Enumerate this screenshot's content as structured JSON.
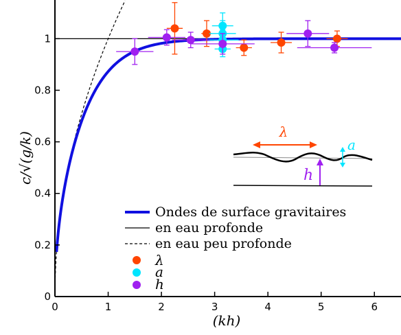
{
  "chart_data": {
    "type": "scatter",
    "xlabel": "(kh)",
    "ylabel": "c/√(g/k)",
    "xlim": [
      0,
      6.5
    ],
    "ylim": [
      0,
      1.15
    ],
    "xticks": [
      0,
      1,
      2,
      3,
      4,
      5,
      6
    ],
    "yticks": [
      0,
      0.2,
      0.4,
      0.6,
      0.8,
      1
    ],
    "ytick_labels": [
      "0",
      "0.2",
      "0.4",
      "0.6",
      "0.8",
      "1"
    ],
    "grid": false,
    "legend_position": "bottom-right",
    "lines": [
      {
        "name": "Ondes de surface gravitaires",
        "formula": "sqrt(tanh(kh))",
        "color": "#1010e0"
      },
      {
        "name": "en eau profonde",
        "formula": "1",
        "color": "#000000"
      },
      {
        "name": "en eau peu profonde",
        "formula": "sqrt(kh)",
        "color": "#000000"
      }
    ],
    "series": [
      {
        "name": "λ",
        "color": "#ff4500",
        "points": [
          {
            "x": 2.25,
            "y": 1.04,
            "xerr": 0.15,
            "yerr": 0.1
          },
          {
            "x": 2.85,
            "y": 1.02,
            "xerr": 0.1,
            "yerr": 0.05
          },
          {
            "x": 3.55,
            "y": 0.965,
            "xerr": 0.15,
            "yerr": 0.03
          },
          {
            "x": 4.25,
            "y": 0.985,
            "xerr": 0.2,
            "yerr": 0.04
          },
          {
            "x": 5.3,
            "y": 1.0,
            "xerr": 0.2,
            "yerr": 0.03
          }
        ]
      },
      {
        "name": "a",
        "color": "#00e5ff",
        "points": [
          {
            "x": 3.15,
            "y": 1.05,
            "xerr": 0.2,
            "yerr": 0.05
          },
          {
            "x": 3.15,
            "y": 1.02,
            "xerr": 0.25,
            "yerr": 0.05
          },
          {
            "x": 3.15,
            "y": 0.995,
            "xerr": 0.3,
            "yerr": 0.04
          },
          {
            "x": 3.15,
            "y": 0.96,
            "xerr": 0.15,
            "yerr": 0.03
          }
        ]
      },
      {
        "name": "h",
        "color": "#a020f0",
        "points": [
          {
            "x": 1.5,
            "y": 0.95,
            "xerr": 0.35,
            "yerr": 0.05
          },
          {
            "x": 2.1,
            "y": 1.005,
            "xerr": 0.35,
            "yerr": 0.03
          },
          {
            "x": 2.55,
            "y": 0.995,
            "xerr": 0.35,
            "yerr": 0.03
          },
          {
            "x": 3.15,
            "y": 0.98,
            "xerr": 0.6,
            "yerr": 0.04
          },
          {
            "x": 4.75,
            "y": 1.02,
            "xerr": 0.4,
            "yerr": 0.05
          },
          {
            "x": 5.25,
            "y": 0.965,
            "xerr": 0.7,
            "yerr": 0.02
          }
        ]
      }
    ],
    "inset": {
      "wavelength_label": "λ",
      "amplitude_label": "a",
      "depth_label": "h"
    },
    "colors": {
      "theory_line": "#1010e0",
      "lambda": "#ff4500",
      "amplitude": "#00e5ff",
      "depth": "#a020f0"
    }
  }
}
